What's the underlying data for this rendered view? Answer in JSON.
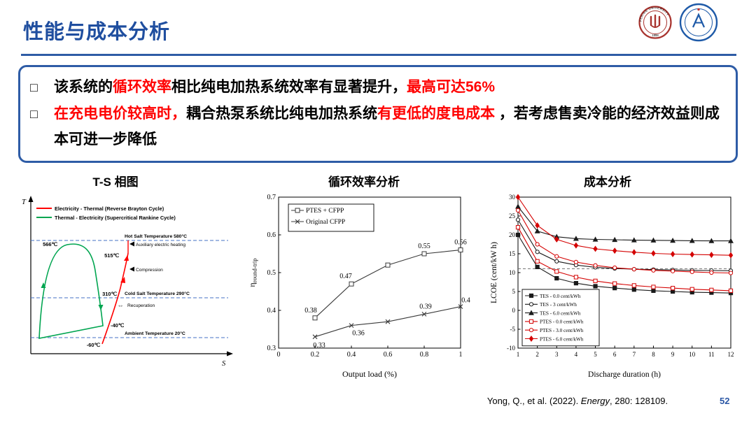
{
  "header": {
    "title": "性能与成本分析",
    "accent_color": "#1F4E9F"
  },
  "logos": {
    "peking_ring_text": "PEKING UNIVERSITY",
    "peking_year": "1898"
  },
  "summary": {
    "bullet_char": "□",
    "bullets": [
      {
        "segments": [
          {
            "t": "该系统的",
            "c": "#000000"
          },
          {
            "t": "循环效率",
            "c": "#FF0000"
          },
          {
            "t": "相比纯电加热系统效率有显著提升，",
            "c": "#000000"
          },
          {
            "t": "最高可达56%",
            "c": "#FF0000"
          }
        ]
      },
      {
        "segments": [
          {
            "t": "在充电电价较高时，",
            "c": "#FF0000"
          },
          {
            "t": "耦合热泵系统比纯电加热系统",
            "c": "#000000"
          },
          {
            "t": "有更低的度电成本",
            "c": "#FF0000"
          },
          {
            "t": " ，若考虑售卖冷能的经济效益则成本可进一步降低",
            "c": "#000000"
          }
        ]
      }
    ]
  },
  "chart_data": [
    {
      "type": "diagram",
      "title": "T-S 相图",
      "axis": {
        "x": "S",
        "y": "T"
      },
      "legend": [
        "Electricity - Thermal (Reverse Brayton Cycle)",
        "Thermal - Electricity (Supercritical Rankine Cycle)"
      ],
      "reference_lines": {
        "hot": "Hot Salt Temperature 580°C",
        "cold": "Cold Salt Temperature 290°C",
        "ambient": "Ambient Temperature 20°C"
      },
      "temperatures": {
        "t566": "566℃",
        "t515": "515℃",
        "t310": "310℃",
        "tm40": "-40℃",
        "tm60": "-60℃"
      },
      "annotations": {
        "aux": "Auxiliary electric heating",
        "comp": "Compression",
        "recu": "Recuperation",
        "exchange": "⇔"
      },
      "colors": {
        "charge_cycle": "#FF0000",
        "discharge_cycle": "#00A550",
        "temp_lines": "#4472C4"
      }
    },
    {
      "type": "line",
      "title": "循环效率分析",
      "xlabel": "Output load (%)",
      "ylabel": "η_round-trip",
      "ylabel_parts": {
        "main": "η",
        "sub": "round-trip"
      },
      "xlim": [
        0,
        1
      ],
      "ylim": [
        0.3,
        0.7
      ],
      "xticks": [
        "0",
        "0.2",
        "0.4",
        "0.6",
        "0.8",
        "1"
      ],
      "yticks": [
        "0.3",
        "0.4",
        "0.5",
        "0.6",
        "0.7"
      ],
      "legend_position": "top-left",
      "series": [
        {
          "name": "PTES + CFPP",
          "color": "#3a3a3a",
          "marker": "square",
          "fill": false,
          "x": [
            0.2,
            0.4,
            0.6,
            0.8,
            1.0
          ],
          "y": [
            0.38,
            0.47,
            0.52,
            0.55,
            0.56
          ],
          "labels": [
            "0.38",
            "0.47",
            "",
            "0.55",
            "0.56"
          ]
        },
        {
          "name": "Original CFPP",
          "color": "#3a3a3a",
          "marker": "x",
          "fill": false,
          "x": [
            0.2,
            0.4,
            0.6,
            0.8,
            1.0
          ],
          "y": [
            0.33,
            0.36,
            0.37,
            0.39,
            0.41
          ],
          "labels": [
            "0.33",
            "0.36",
            "",
            "0.39",
            "0.41"
          ]
        }
      ]
    },
    {
      "type": "line",
      "title": "成本分析",
      "xlabel": "Discharge duration (h)",
      "ylabel": "LCOE (cent/kW h)",
      "xlim": [
        1,
        12
      ],
      "ylim": [
        -10,
        30
      ],
      "xticks": [
        "1",
        "2",
        "3",
        "4",
        "5",
        "6",
        "7",
        "8",
        "9",
        "10",
        "11",
        "12"
      ],
      "yticks": [
        "-10",
        "-5",
        "0",
        "5",
        "10",
        "15",
        "20",
        "25",
        "30"
      ],
      "refline": {
        "y": 11,
        "style": "dashed"
      },
      "legend_position": "bottom-left",
      "series": [
        {
          "name": "TES - 0.0 cent/kWh",
          "color": "#1a1a1a",
          "marker": "square",
          "fill": true,
          "x": [
            1,
            2,
            3,
            4,
            5,
            6,
            7,
            8,
            9,
            10,
            11,
            12
          ],
          "y": [
            20,
            11.5,
            8.5,
            7.2,
            6.4,
            5.9,
            5.5,
            5.2,
            5.0,
            4.8,
            4.7,
            4.6
          ]
        },
        {
          "name": "TES - 3 cent/kWh",
          "color": "#1a1a1a",
          "marker": "circle",
          "fill": false,
          "x": [
            1,
            2,
            3,
            4,
            5,
            6,
            7,
            8,
            9,
            10,
            11,
            12
          ],
          "y": [
            24,
            15.5,
            13.0,
            12.0,
            11.4,
            11.1,
            10.9,
            10.8,
            10.7,
            10.6,
            10.55,
            10.5
          ]
        },
        {
          "name": "TES - 6.0 cent/kWh",
          "color": "#1a1a1a",
          "marker": "triangle",
          "fill": true,
          "x": [
            1,
            2,
            3,
            4,
            5,
            6,
            7,
            8,
            9,
            10,
            11,
            12
          ],
          "y": [
            27.5,
            21.0,
            19.5,
            19.0,
            18.8,
            18.7,
            18.6,
            18.55,
            18.5,
            18.45,
            18.4,
            18.4
          ]
        },
        {
          "name": "PTES - 0.0 cent/kWh",
          "color": "#D40000",
          "marker": "square",
          "fill": false,
          "x": [
            1,
            2,
            3,
            4,
            5,
            6,
            7,
            8,
            9,
            10,
            11,
            12
          ],
          "y": [
            22,
            13.0,
            10.3,
            8.8,
            7.8,
            7.1,
            6.6,
            6.2,
            5.9,
            5.6,
            5.4,
            5.2
          ]
        },
        {
          "name": "PTES - 3.0 cent/kWh",
          "color": "#D40000",
          "marker": "circle",
          "fill": false,
          "x": [
            1,
            2,
            3,
            4,
            5,
            6,
            7,
            8,
            9,
            10,
            11,
            12
          ],
          "y": [
            26.5,
            17.5,
            14.3,
            12.8,
            11.9,
            11.3,
            10.9,
            10.6,
            10.4,
            10.2,
            10.0,
            9.9
          ]
        },
        {
          "name": "PTES - 6.0 cent/kWh",
          "color": "#D40000",
          "marker": "diamond",
          "fill": true,
          "x": [
            1,
            2,
            3,
            4,
            5,
            6,
            7,
            8,
            9,
            10,
            11,
            12
          ],
          "y": [
            30,
            22.5,
            18.8,
            17.2,
            16.3,
            15.8,
            15.4,
            15.1,
            14.9,
            14.8,
            14.7,
            14.6
          ]
        }
      ]
    }
  ],
  "footer": {
    "citation": {
      "pre": "Yong, Q., et al. (2022). ",
      "journal": "Energy",
      "post": ", 280: 128109."
    },
    "page_number": "52"
  }
}
